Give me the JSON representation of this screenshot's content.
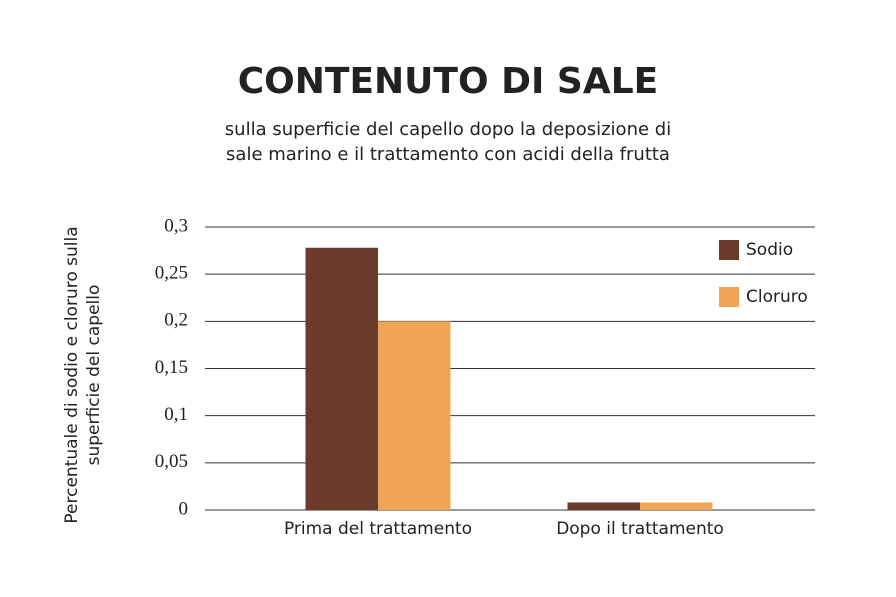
{
  "chart_data": {
    "type": "bar",
    "title": "CONTENUTO DI SALE",
    "subtitle": [
      "sulla superficie del capello dopo la deposizione di",
      "sale marino e il trattamento con acidi della frutta"
    ],
    "ylabel": [
      "Percentuale di sodio e cloruro sulla",
      "superficie del capello"
    ],
    "categories": [
      "Prima del trattamento",
      "Dopo il trattamento"
    ],
    "series": [
      {
        "name": "Sodio",
        "color": "#6b3a2a",
        "values": [
          0.278,
          0.008
        ]
      },
      {
        "name": "Cloruro",
        "color": "#f0a455",
        "values": [
          0.2,
          0.008
        ]
      }
    ],
    "ylim": [
      0,
      0.3
    ],
    "yticks": [
      0,
      {
        "value": 0.05,
        "label": "0,05"
      },
      {
        "value": 0.1,
        "label": "0,1"
      },
      {
        "value": 0.15,
        "label": "0,15"
      },
      {
        "value": 0.2,
        "label": "0,2"
      },
      {
        "value": 0.25,
        "label": "0,25"
      },
      {
        "value": 0.3,
        "label": "0,3"
      }
    ],
    "grid": true,
    "legend": "top-right"
  }
}
